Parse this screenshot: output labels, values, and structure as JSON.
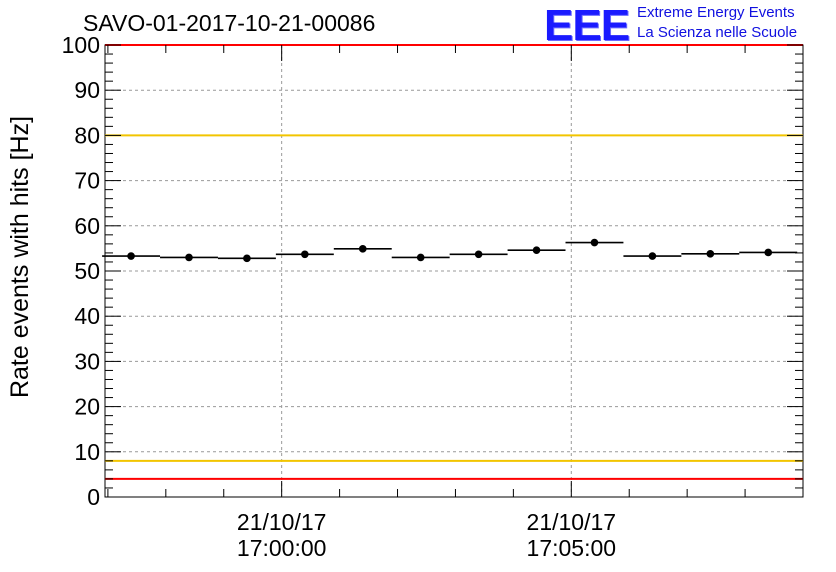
{
  "header": {
    "title": "SAVO-01-2017-10-21-00086",
    "logo_mark": "EEE",
    "logo_line1": "Extreme Energy Events",
    "logo_line2": "La Scienza nelle Scuole"
  },
  "chart_data": {
    "type": "scatter",
    "title": "SAVO-01-2017-10-21-00086",
    "xlabel": "",
    "ylabel": "Rate events with hits [Hz]",
    "ylim": [
      0,
      100
    ],
    "y_ticks": [
      0,
      10,
      20,
      30,
      40,
      50,
      60,
      70,
      80,
      90,
      100
    ],
    "xlim_minutes": [
      -3.05,
      9.0
    ],
    "x_ticks": [
      {
        "minute": 0,
        "date": "21/10/17",
        "time": "17:00:00"
      },
      {
        "minute": 5,
        "date": "21/10/17",
        "time": "17:05:00"
      }
    ],
    "grid": true,
    "bin_half_width_minutes": 0.5,
    "points": [
      {
        "x_minute": -2.6,
        "y": 53.3
      },
      {
        "x_minute": -1.6,
        "y": 53.0
      },
      {
        "x_minute": -0.6,
        "y": 52.8
      },
      {
        "x_minute": 0.4,
        "y": 53.7
      },
      {
        "x_minute": 1.4,
        "y": 54.9
      },
      {
        "x_minute": 2.4,
        "y": 53.0
      },
      {
        "x_minute": 3.4,
        "y": 53.7
      },
      {
        "x_minute": 4.4,
        "y": 54.6
      },
      {
        "x_minute": 5.4,
        "y": 56.3
      },
      {
        "x_minute": 6.4,
        "y": 53.3
      },
      {
        "x_minute": 7.4,
        "y": 53.8
      },
      {
        "x_minute": 8.4,
        "y": 54.1
      }
    ],
    "reference_lines": [
      {
        "y": 100,
        "color": "#ff0000"
      },
      {
        "y": 80,
        "color": "#f2c500"
      },
      {
        "y": 8,
        "color": "#f2c500"
      },
      {
        "y": 4,
        "color": "#ff0000"
      }
    ]
  }
}
